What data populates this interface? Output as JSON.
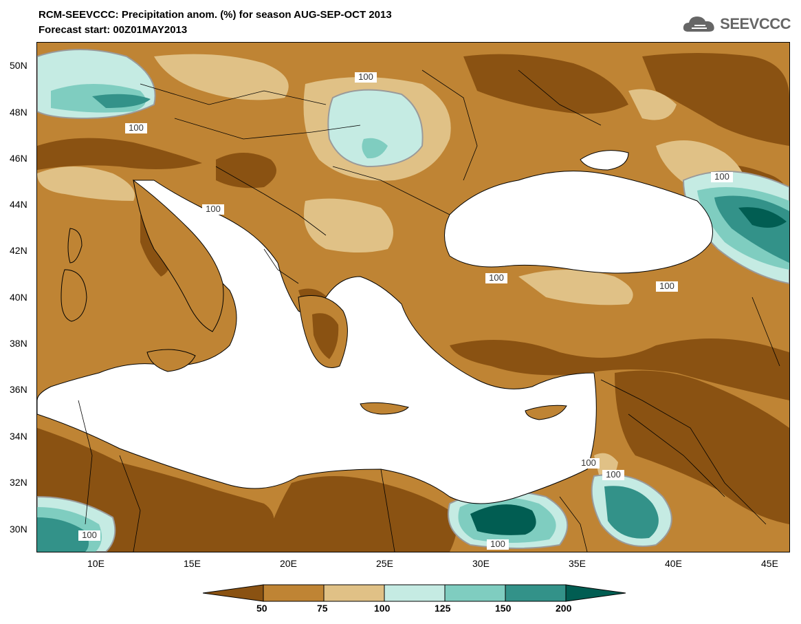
{
  "header": {
    "title": "RCM-SEEVCCC: Precipitation anom. (%) for season AUG-SEP-OCT 2013",
    "subtitle": "Forecast start: 00Z01MAY2013",
    "logo_text": "SEEVCCC",
    "logo_icon": "cloud-logo-icon"
  },
  "map": {
    "lat_labels": [
      "50N",
      "48N",
      "46N",
      "44N",
      "42N",
      "40N",
      "38N",
      "36N",
      "34N",
      "32N",
      "30N"
    ],
    "lon_labels": [
      "10E",
      "15E",
      "20E",
      "25E",
      "30E",
      "35E",
      "40E",
      "45E"
    ],
    "contour_labels": [
      "100",
      "100",
      "100",
      "100",
      "100",
      "100",
      "100",
      "100",
      "100",
      "100"
    ]
  },
  "legend": {
    "labels": [
      "50",
      "75",
      "100",
      "125",
      "150",
      "200"
    ],
    "colors": [
      "#8a5212",
      "#bf8434",
      "#e0c186",
      "#c5ebe3",
      "#7fcdc0",
      "#339289",
      "#015d52"
    ]
  },
  "colors": {
    "very_dry": "#8a5212",
    "dry": "#bf8434",
    "slightly_dry": "#e0c186",
    "normal_wet": "#c5ebe3",
    "wet": "#7fcdc0",
    "very_wet": "#339289",
    "extreme_wet": "#015d52",
    "sea": "#ffffff"
  }
}
